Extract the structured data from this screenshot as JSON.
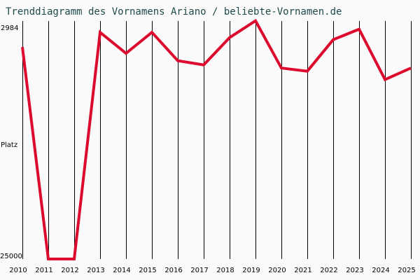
{
  "title": "Trenddiagramm des Vornamens Ariano / beliebte-Vornamen.de",
  "chart_data": {
    "type": "line",
    "title": "Trenddiagramm des Vornamens Ariano / beliebte-Vornamen.de",
    "xlabel": "",
    "ylabel": "Platz",
    "y_tick_labels": [
      "2984",
      "25000"
    ],
    "y_inverted": true,
    "ylim": [
      2984,
      25000
    ],
    "grid": "vertical",
    "categories": [
      "2010",
      "2011",
      "2012",
      "2013",
      "2014",
      "2015",
      "2016",
      "2017",
      "2018",
      "2019",
      "2020",
      "2021",
      "2022",
      "2023",
      "2024",
      "2025"
    ],
    "series": [
      {
        "name": "Ariano",
        "color": "#dc0a2d",
        "values": [
          4800,
          25000,
          25000,
          3400,
          5400,
          3400,
          6100,
          6500,
          3900,
          2300,
          6800,
          7100,
          4100,
          3100,
          7900,
          6800
        ]
      }
    ]
  },
  "axis": {
    "ylabel": "Platz",
    "ytick_top": "2984",
    "ytick_bottom": "25000"
  },
  "colors": {
    "line": "#dc0a2d",
    "title": "#1f4a4a",
    "background": "#fafafa"
  }
}
